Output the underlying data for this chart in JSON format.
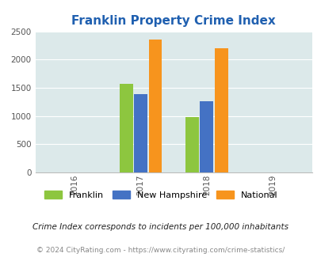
{
  "title": "Franklin Property Crime Index",
  "title_color": "#2060b0",
  "years": [
    2016,
    2017,
    2018,
    2019
  ],
  "bar_groups": {
    "2017": {
      "Franklin": 1565,
      "New Hampshire": 1385,
      "National": 2350
    },
    "2018": {
      "Franklin": 985,
      "New Hampshire": 1255,
      "National": 2195
    }
  },
  "colors": {
    "Franklin": "#8dc63f",
    "New Hampshire": "#4472c4",
    "National": "#f7941d"
  },
  "ylim": [
    0,
    2500
  ],
  "yticks": [
    0,
    500,
    1000,
    1500,
    2000,
    2500
  ],
  "bg_color": "#dce9ea",
  "legend_labels": [
    "Franklin",
    "New Hampshire",
    "National"
  ],
  "footnote1": "Crime Index corresponds to incidents per 100,000 inhabitants",
  "footnote2": "© 2024 CityRating.com - https://www.cityrating.com/crime-statistics/",
  "bar_width": 0.22,
  "xlim": [
    2015.4,
    2019.6
  ]
}
